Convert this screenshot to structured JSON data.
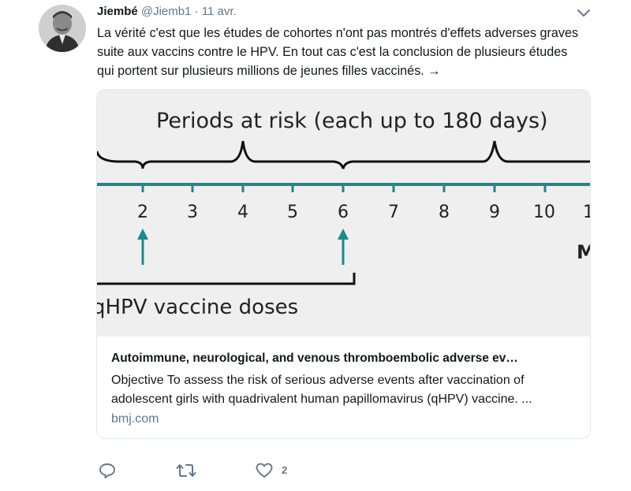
{
  "tweet": {
    "author_name": "Jiembé",
    "handle": "@Jiemb1",
    "separator": "·",
    "time": "11 avr.",
    "text": "La vérité c'est que les études de cohortes n'ont pas montrés d'effets adverses graves suite aux vaccins contre le HPV. En tout cas c'est la conclusion de plusieurs études qui portent sur plusieurs millions de jeunes filles vaccinés. →"
  },
  "card": {
    "image": {
      "heading": "Periods at risk (each up to 180 days)",
      "ticks": [
        "2",
        "3",
        "4",
        "5",
        "6",
        "7",
        "8",
        "9",
        "10",
        "1"
      ],
      "right_fragment": "M",
      "doses_label": "qHPV vaccine doses",
      "colors": {
        "axis": "#1a8a8a",
        "background": "#efefef"
      }
    },
    "title": "Autoimmune, neurological, and venous thromboembolic adverse ev…",
    "description": "Objective To assess the risk of serious adverse events after vaccination of adolescent girls with quadrivalent human papillomavirus (qHPV) vaccine. ...",
    "domain": "bmj.com"
  },
  "actions": {
    "reply_icon": "reply-icon",
    "retweet_icon": "retweet-icon",
    "like_icon": "heart-icon",
    "like_count": "2"
  },
  "colors": {
    "text": "#14171a",
    "secondary": "#657786",
    "border": "#e1e8ed"
  }
}
